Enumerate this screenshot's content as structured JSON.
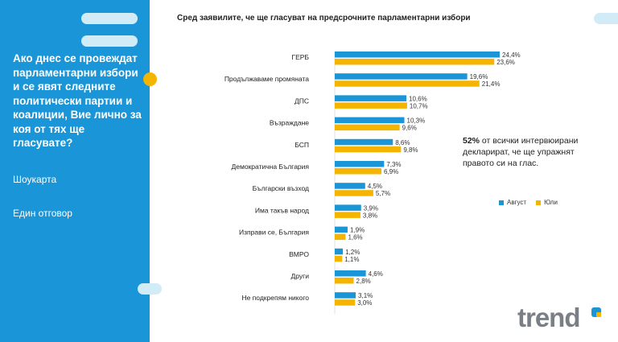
{
  "sidebar": {
    "question": "Ако днес се провеждат парламентарни избори и се явят следните политически партии и коалиции, Вие лично за коя от тях ще гласувате?",
    "method": "Шоукарта",
    "answer_type": "Един отговор"
  },
  "note": {
    "highlight": "52%",
    "text": " от всички интервюирани декларират, че ще упражнят правото си на глас."
  },
  "logo_text": "trend",
  "colors": {
    "august": "#1a95d8",
    "july": "#f5b400",
    "panel": "#1a95d8"
  },
  "chart_data": {
    "type": "bar",
    "orientation": "horizontal",
    "title": "Сред заявилите, че ще гласуват на предсрочните парламентарни избори",
    "categories": [
      "ГЕРБ",
      "Продължаваме промяната",
      "ДПС",
      "Възраждане",
      "БСП",
      "Демократична България",
      "Български възход",
      "Има такъв народ",
      "Изправи се, България",
      "ВМРО",
      "Други",
      "Не подкрепям никого"
    ],
    "series": [
      {
        "name": "Август",
        "values": [
          24.4,
          19.6,
          10.6,
          10.3,
          8.6,
          7.3,
          4.5,
          3.9,
          1.9,
          1.2,
          4.6,
          3.1
        ],
        "labels": [
          "24,4%",
          "19,6%",
          "10,6%",
          "10,3%",
          "8,6%",
          "7,3%",
          "4,5%",
          "3,9%",
          "1,9%",
          "1,2%",
          "4,6%",
          "3,1%"
        ]
      },
      {
        "name": "Юли",
        "values": [
          23.6,
          21.4,
          10.7,
          9.6,
          9.8,
          6.9,
          5.7,
          3.8,
          1.6,
          1.1,
          2.8,
          3.0
        ],
        "labels": [
          "23,6%",
          "21,4%",
          "10,7%",
          "9,6%",
          "9,8%",
          "6,9%",
          "5,7%",
          "3,8%",
          "1,6%",
          "1,1%",
          "2,8%",
          "3,0%"
        ]
      }
    ],
    "legend_position": "right"
  }
}
